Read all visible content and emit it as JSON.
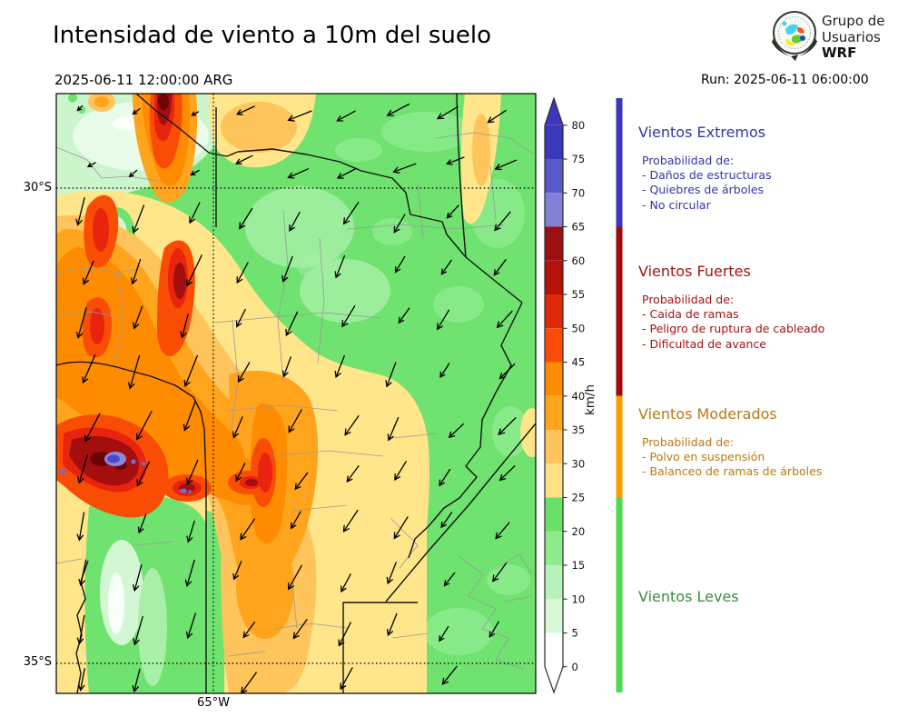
{
  "header": {
    "title": "Intensidad de viento a 10m del suelo",
    "valid_time": "2025-06-11 12:00:00 ARG",
    "run_label": "Run: 2025-06-11 06:00:00",
    "logo": {
      "line1": "Grupo de",
      "line2": "Usuarios",
      "line3": "WRF"
    }
  },
  "map": {
    "lat_label_top": "30°S",
    "lat_label_bottom": "35°S",
    "lon_label": "65°W"
  },
  "colorbar": {
    "unit": "km/h",
    "min": 0,
    "max": 80,
    "tick_step": 5,
    "ticks": [
      0,
      5,
      10,
      15,
      20,
      25,
      30,
      35,
      40,
      45,
      50,
      55,
      60,
      65,
      70,
      75,
      80
    ],
    "segments": [
      {
        "from": 0,
        "to": 5,
        "color": "#ffffff"
      },
      {
        "from": 5,
        "to": 10,
        "color": "#d7f8d7"
      },
      {
        "from": 10,
        "to": 15,
        "color": "#b9f2b9"
      },
      {
        "from": 15,
        "to": 20,
        "color": "#8deb8d"
      },
      {
        "from": 20,
        "to": 25,
        "color": "#69e169"
      },
      {
        "from": 25,
        "to": 30,
        "color": "#ffe286"
      },
      {
        "from": 30,
        "to": 35,
        "color": "#ffc45c"
      },
      {
        "from": 35,
        "to": 40,
        "color": "#ffa41c"
      },
      {
        "from": 40,
        "to": 45,
        "color": "#ff8b00"
      },
      {
        "from": 45,
        "to": 50,
        "color": "#f94d05"
      },
      {
        "from": 50,
        "to": 55,
        "color": "#dc2a0a"
      },
      {
        "from": 55,
        "to": 60,
        "color": "#b51309"
      },
      {
        "from": 60,
        "to": 65,
        "color": "#9c0f13"
      },
      {
        "from": 65,
        "to": 70,
        "color": "#8280d9"
      },
      {
        "from": 70,
        "to": 75,
        "color": "#5b58cb"
      },
      {
        "from": 75,
        "to": 80,
        "color": "#3b38bc"
      }
    ],
    "over_color": "#3b38bc",
    "under_color": "#ffffff"
  },
  "categories": [
    {
      "title": "Vientos Extremos",
      "color": "#3733a9",
      "strip_color": "#3b38bc",
      "range_kmh": [
        65,
        84
      ],
      "intro": "Probabilidad de:",
      "items": [
        "- Daños de estructuras",
        "- Quiebres de árboles",
        "- No circular"
      ]
    },
    {
      "title": "Vientos Fuertes",
      "color": "#a41315",
      "strip_color": "#9c0a0a",
      "range_kmh": [
        40,
        65
      ],
      "intro": "Probabilidad de:",
      "items": [
        "- Caida de ramas",
        "- Peligro de ruptura de cableado",
        "- Dificultad de avance"
      ]
    },
    {
      "title": "Vientos Moderados",
      "color": "#bc7814",
      "strip_color": "#ff9c00",
      "range_kmh": [
        25,
        40
      ],
      "intro": "Probabilidad de:",
      "items": [
        "- Polvo en suspensión",
        "- Balanceo de ramas de árboles"
      ]
    },
    {
      "title": "Vientos Leves",
      "color": "#3c8c40",
      "strip_color": "#4fd94f",
      "range_kmh": [
        0,
        25
      ],
      "intro": "",
      "items": []
    }
  ]
}
